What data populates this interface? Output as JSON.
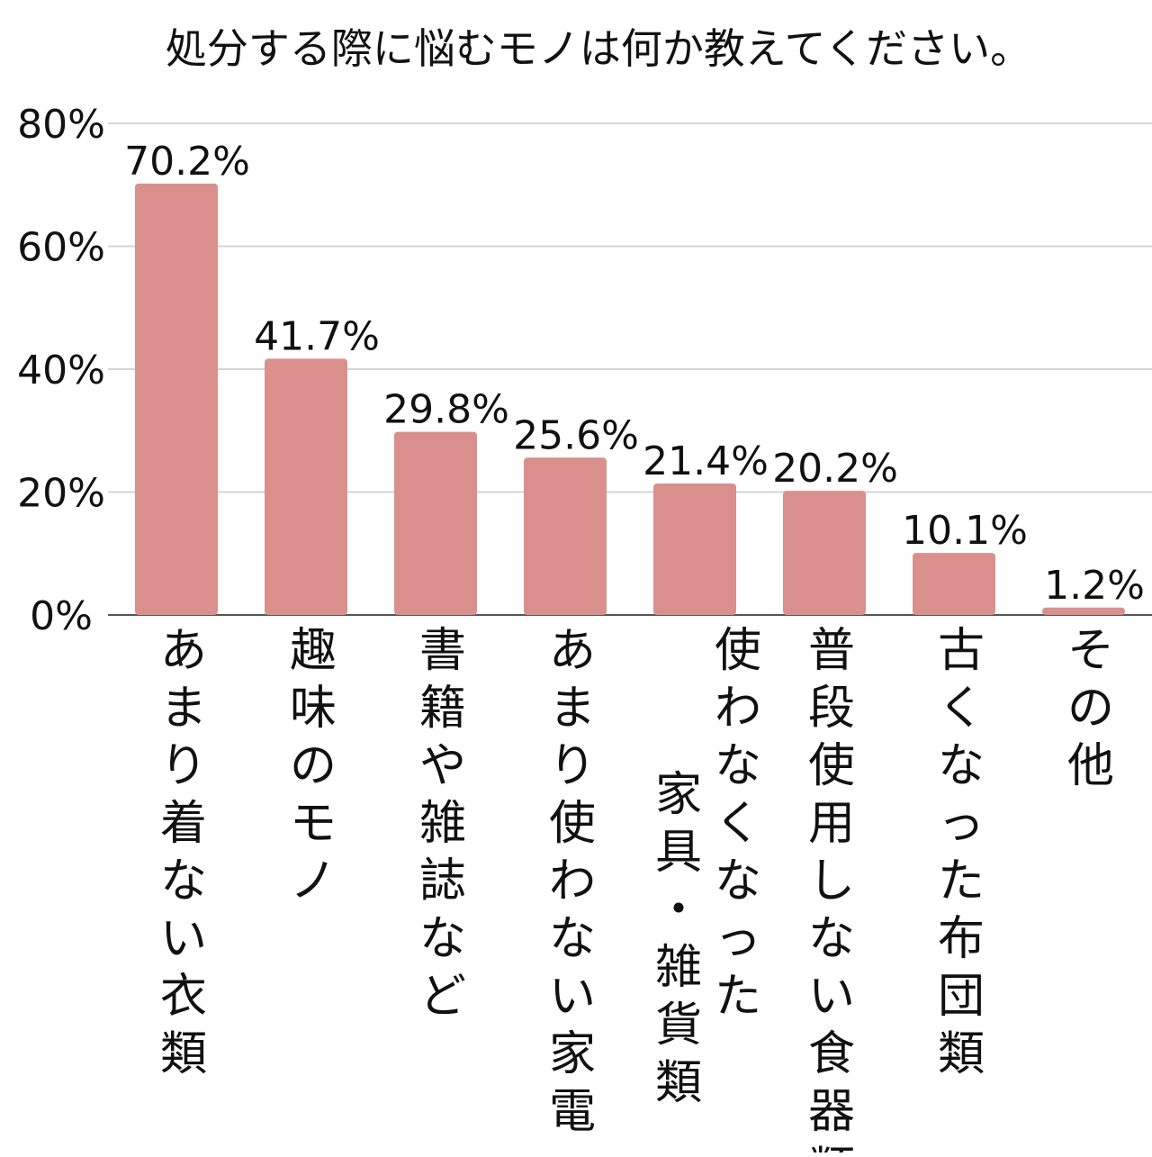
{
  "chart_data": {
    "type": "bar",
    "title": "処分する際に悩むモノは何か教えてください。",
    "xlabel": "",
    "ylabel": "",
    "ylim": [
      0,
      80
    ],
    "y_ticks": [
      0,
      20,
      40,
      60,
      80
    ],
    "y_tick_labels": [
      "0%",
      "20%",
      "40%",
      "60%",
      "80%"
    ],
    "grid": true,
    "legend": "none",
    "bar_color": "#d9908c",
    "categories": [
      [
        "あまり着ない衣類"
      ],
      [
        "趣味のモノ"
      ],
      [
        "書籍や雑誌など"
      ],
      [
        "あまり使わない家電"
      ],
      [
        "使わなくなった",
        "家具・雑貨類"
      ],
      [
        "普段使用しない食器類"
      ],
      [
        "古くなった布団類"
      ],
      [
        "その他"
      ]
    ],
    "values": [
      70.2,
      41.7,
      29.8,
      25.6,
      21.4,
      20.2,
      10.1,
      1.2
    ],
    "value_labels": [
      "70.2%",
      "41.7%",
      "29.8%",
      "25.6%",
      "21.4%",
      "20.2%",
      "10.1%",
      "1.2%"
    ]
  }
}
